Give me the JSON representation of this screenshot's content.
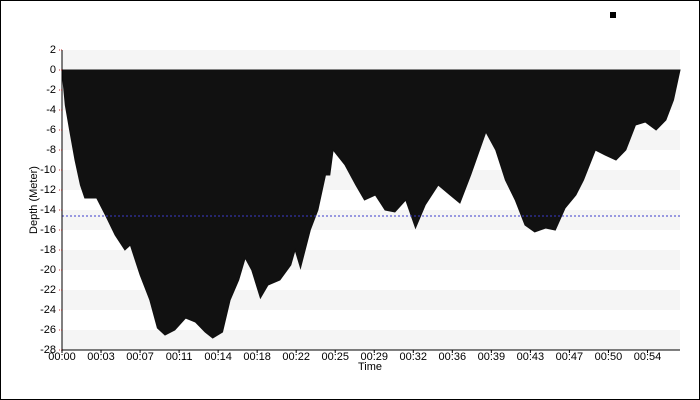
{
  "chart_data": {
    "type": "area",
    "x_label": "Time",
    "y_label": "Depth (Meter)",
    "x": [
      0,
      0.3,
      0.7,
      1.2,
      1.7,
      2.1,
      3.2,
      4.0,
      4.9,
      5.8,
      6.3,
      7.2,
      8.1,
      8.8,
      9.5,
      10.4,
      11.4,
      12.3,
      13.2,
      13.9,
      14.8,
      15.5,
      16.3,
      16.9,
      17.5,
      18.3,
      19.0,
      20.1,
      21.1,
      21.5,
      22.0,
      22.9,
      23.6,
      24.3,
      24.7,
      25.0,
      26.1,
      27.1,
      27.9,
      28.9,
      29.8,
      30.7,
      31.7,
      32.6,
      33.5,
      34.7,
      35.8,
      36.7,
      37.7,
      39.1,
      40.0,
      40.9,
      41.8,
      42.7,
      43.6,
      44.6,
      45.5,
      46.4,
      47.4,
      48.1,
      49.2,
      50.1,
      51.1,
      52.0,
      52.9,
      53.8,
      54.8,
      55.7,
      56.4,
      57
    ],
    "values": [
      0,
      -3.5,
      -6,
      -9,
      -11.5,
      -12.8,
      -12.8,
      -14.5,
      -16.5,
      -18,
      -17.5,
      -20.5,
      -23,
      -25.8,
      -26.5,
      -26,
      -24.8,
      -25.2,
      -26.2,
      -26.8,
      -26.2,
      -23,
      -21,
      -18.8,
      -20,
      -22.8,
      -21.5,
      -21,
      -19.5,
      -18,
      -19.8,
      -16,
      -14,
      -10.5,
      -10.5,
      -8,
      -9.5,
      -11.5,
      -13,
      -12.5,
      -14,
      -14.2,
      -13,
      -15.8,
      -13.5,
      -11.5,
      -12.5,
      -13.3,
      -10.5,
      -6.2,
      -8,
      -11,
      -13,
      -15.5,
      -16.2,
      -15.8,
      -16,
      -13.8,
      -12.5,
      -11,
      -8,
      -8.5,
      -9,
      -8,
      -5.5,
      -5.2,
      -6,
      -5,
      -3,
      0
    ],
    "color": "#111111",
    "reference_line": -14.6,
    "reference_color": "#3b3bcc",
    "xlim": [
      0,
      57
    ],
    "xticks": [
      {
        "value": 0,
        "label": "00:00"
      },
      {
        "value": 3.6,
        "label": "00:03"
      },
      {
        "value": 7.2,
        "label": "00:07"
      },
      {
        "value": 10.8,
        "label": "00:11"
      },
      {
        "value": 14.4,
        "label": "00:14"
      },
      {
        "value": 18,
        "label": "00:18"
      },
      {
        "value": 21.6,
        "label": "00:22"
      },
      {
        "value": 25.2,
        "label": "00:25"
      },
      {
        "value": 28.8,
        "label": "00:29"
      },
      {
        "value": 32.4,
        "label": "00:32"
      },
      {
        "value": 36,
        "label": "00:36"
      },
      {
        "value": 39.6,
        "label": "00:39"
      },
      {
        "value": 43.2,
        "label": "00:43"
      },
      {
        "value": 46.8,
        "label": "00:47"
      },
      {
        "value": 50.4,
        "label": "00:50"
      },
      {
        "value": 54,
        "label": "00:54"
      }
    ],
    "ylim": [
      -28,
      2
    ],
    "yticks": [
      2,
      0,
      -2,
      -4,
      -6,
      -8,
      -10,
      -12,
      -14,
      -16,
      -18,
      -20,
      -22,
      -24,
      -26,
      -28
    ],
    "grid": true
  }
}
